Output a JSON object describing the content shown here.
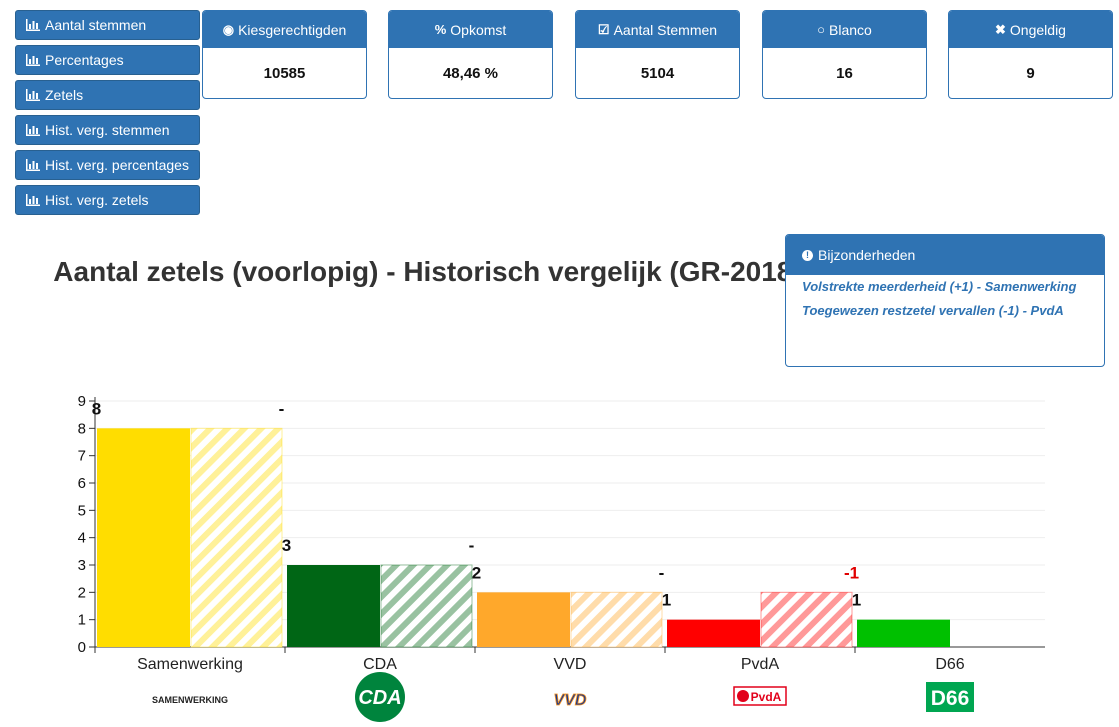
{
  "nav": {
    "items": [
      {
        "label": "Aantal stemmen"
      },
      {
        "label": "Percentages"
      },
      {
        "label": "Zetels"
      },
      {
        "label": "Hist. verg. stemmen"
      },
      {
        "label": "Hist. verg. percentages"
      },
      {
        "label": "Hist. verg. zetels"
      }
    ]
  },
  "stats": [
    {
      "label": "Kiesgerechtigden",
      "value": "10585",
      "icon": "users-icon"
    },
    {
      "label": "Opkomst",
      "value": "48,46 %",
      "icon": "percent-icon"
    },
    {
      "label": "Aantal Stemmen",
      "value": "5104",
      "icon": "check-square-icon"
    },
    {
      "label": "Blanco",
      "value": "16",
      "icon": "circle-icon"
    },
    {
      "label": "Ongeldig",
      "value": "9",
      "icon": "times-icon"
    }
  ],
  "info": {
    "title": "Bijzonderheden",
    "lines": [
      "Volstrekte meerderheid (+1) - Samenwerking",
      "Toegewezen restzetel vervallen (-1) - PvdA"
    ]
  },
  "chart_data": {
    "type": "bar",
    "title": "Aantal zetels (voorlopig) - Historisch vergelijk (GR-2018)",
    "categories": [
      "Samenwerking",
      "CDA",
      "VVD",
      "PvdA",
      "D66"
    ],
    "series": [
      {
        "values": [
          8,
          3,
          2,
          1,
          1
        ],
        "colors": [
          "#ffdd00",
          "#006615",
          "#ffa82b",
          "#ff0000",
          "#00c000"
        ]
      },
      {
        "values": [
          8,
          3,
          2,
          2,
          null
        ],
        "style": "hatched"
      }
    ],
    "labels": [
      "8",
      "3",
      "2",
      "1",
      "1"
    ],
    "diff_labels": [
      "-",
      "-",
      "-",
      "-1",
      ""
    ],
    "diff_colors": [
      "#111111",
      "#111111",
      "#111111",
      "#e00000",
      "#111111"
    ],
    "ylim": [
      0,
      9
    ],
    "yticks": [
      0,
      1,
      2,
      3,
      4,
      5,
      6,
      7,
      8,
      9
    ],
    "grid": true,
    "logos": [
      {
        "text": "SAMENWERKING",
        "icon": "samenwerking-logo",
        "color": "#222222"
      },
      {
        "text": "CDA",
        "icon": "cda-logo",
        "color": "#00843d"
      },
      {
        "text": "VVD",
        "icon": "vvd-logo",
        "color": "#1c3a8f"
      },
      {
        "text": "PvdA",
        "icon": "pvda-logo",
        "color": "#e2001a"
      },
      {
        "text": "D66",
        "icon": "d66-logo",
        "color": "#00a651"
      }
    ]
  }
}
